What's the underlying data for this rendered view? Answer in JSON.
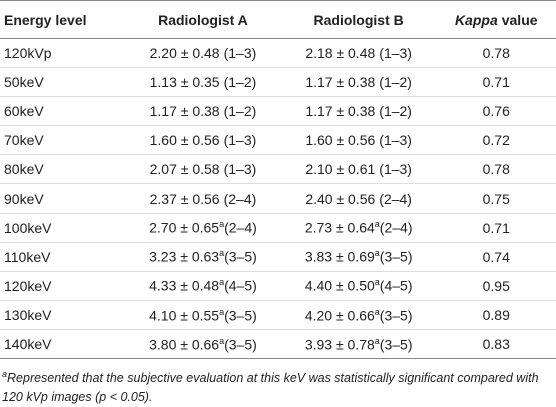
{
  "table": {
    "header": [
      "Energy level",
      "Radiologist A",
      "Radiologist B",
      [
        "Kappa",
        "value"
      ]
    ],
    "rows": [
      [
        "120kVp",
        {
          "value": "2.20 ± 0.48",
          "range": "(1–3)"
        },
        {
          "value": "2.18 ± 0.48",
          "range": "(1–3)"
        },
        "0.78"
      ],
      [
        "50keV",
        {
          "value": "1.13 ± 0.35",
          "range": "(1–2)"
        },
        {
          "value": "1.17 ± 0.38",
          "range": "(1–2)"
        },
        "0.71"
      ],
      [
        "60keV",
        {
          "value": "1.17 ± 0.38",
          "range": "(1–2)"
        },
        {
          "value": "1.17 ± 0.38",
          "range": "(1–2)"
        },
        "0.76"
      ],
      [
        "70keV",
        {
          "value": "1.60 ± 0.56",
          "range": "(1–3)"
        },
        {
          "value": "1.60 ± 0.56",
          "range": "(1–3)"
        },
        "0.72"
      ],
      [
        "80keV",
        {
          "value": "2.07 ± 0.58",
          "range": "(1–3)"
        },
        {
          "value": "2.10 ± 0.61",
          "range": "(1–3)"
        },
        "0.78"
      ],
      [
        "90keV",
        {
          "value": "2.37 ± 0.56",
          "range": "(2–4)"
        },
        {
          "value": "2.40 ± 0.56",
          "range": "(2–4)"
        },
        "0.75"
      ],
      [
        "100keV",
        {
          "value": "2.70 ± 0.65",
          "sup": "a",
          "range": "(2–4)"
        },
        {
          "value": "2.73 ± 0.64",
          "sup": "a",
          "range": "(2–4)"
        },
        "0.71"
      ],
      [
        "110keV",
        {
          "value": "3.23 ± 0.63",
          "sup": "a",
          "range": "(3–5)"
        },
        {
          "value": "3.83 ± 0.69",
          "sup": "a",
          "range": "(3–5)"
        },
        "0.74"
      ],
      [
        "120keV",
        {
          "value": "4.33 ± 0.48",
          "sup": "a",
          "range": "(4–5)"
        },
        {
          "value": "4.40 ± 0.50",
          "sup": "a",
          "range": "(4–5)"
        },
        "0.95"
      ],
      [
        "130keV",
        {
          "value": "4.10 ± 0.55",
          "sup": "a",
          "range": "(3–5)"
        },
        {
          "value": "4.20 ± 0.66",
          "sup": "a",
          "range": "(3–5)"
        },
        "0.89"
      ],
      [
        "140keV",
        {
          "value": "3.80 ± 0.66",
          "sup": "a",
          "range": "(3–5)"
        },
        {
          "value": "3.93 ± 0.78",
          "sup": "a",
          "range": "(3–5)"
        },
        "0.83"
      ]
    ]
  },
  "footnote": {
    "marker": "a",
    "text": "Represented that the subjective evaluation at this keV was statistically significant compared with 120 kVp images (p < 0.05)."
  }
}
